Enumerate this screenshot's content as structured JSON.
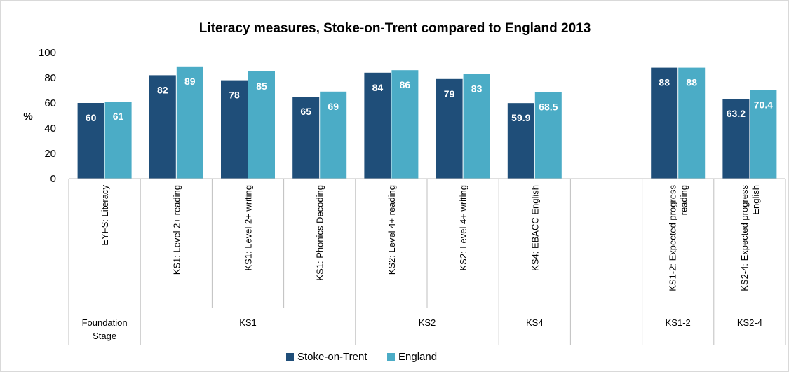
{
  "chart_data": {
    "type": "bar",
    "title": "Literacy measures, Stoke-on-Trent compared to England 2013",
    "ylabel": "%",
    "xlabel": "",
    "ylim": [
      0,
      100
    ],
    "yticks": [
      "0",
      "20",
      "40",
      "60",
      "80",
      "100"
    ],
    "grid": false,
    "legend_position": "bottom",
    "categories": [
      [
        "EYFS: Literacy"
      ],
      [
        "KS1: Level 2+ reading"
      ],
      [
        "KS1: Level 2+ writing"
      ],
      [
        "KS1: Phonics Decoding"
      ],
      [
        "KS2: Level 4+ reading"
      ],
      [
        "KS2: Level 4+ writing"
      ],
      [
        "KS4: EBACC English"
      ],
      [],
      [
        "KS1-2: Expected progress",
        "reading"
      ],
      [
        "KS2-4: Expected progress",
        "English"
      ]
    ],
    "groups": [
      {
        "label": [
          "Foundation",
          "Stage"
        ],
        "start": 0,
        "end": 0
      },
      {
        "label": [
          "KS1"
        ],
        "start": 1,
        "end": 3
      },
      {
        "label": [
          "KS2"
        ],
        "start": 4,
        "end": 5
      },
      {
        "label": [
          "KS4"
        ],
        "start": 6,
        "end": 6
      },
      {
        "label": [],
        "start": 7,
        "end": 7
      },
      {
        "label": [
          "KS1-2"
        ],
        "start": 8,
        "end": 8
      },
      {
        "label": [
          "KS2-4"
        ],
        "start": 9,
        "end": 9
      }
    ],
    "series": [
      {
        "name": "Stoke-on-Trent",
        "color": "#1f4e79",
        "values": [
          60,
          82,
          78,
          65,
          84,
          79,
          59.9,
          null,
          88,
          63.2
        ],
        "labels": [
          "60",
          "82",
          "78",
          "65",
          "84",
          "79",
          "59.9",
          "",
          "88",
          "63.2"
        ]
      },
      {
        "name": "England",
        "color": "#4bacc6",
        "values": [
          61,
          89,
          85,
          69,
          86,
          83,
          68.5,
          null,
          88,
          70.4
        ],
        "labels": [
          "61",
          "89",
          "85",
          "69",
          "86",
          "83",
          "68.5",
          "",
          "88",
          "70.4"
        ]
      }
    ]
  }
}
